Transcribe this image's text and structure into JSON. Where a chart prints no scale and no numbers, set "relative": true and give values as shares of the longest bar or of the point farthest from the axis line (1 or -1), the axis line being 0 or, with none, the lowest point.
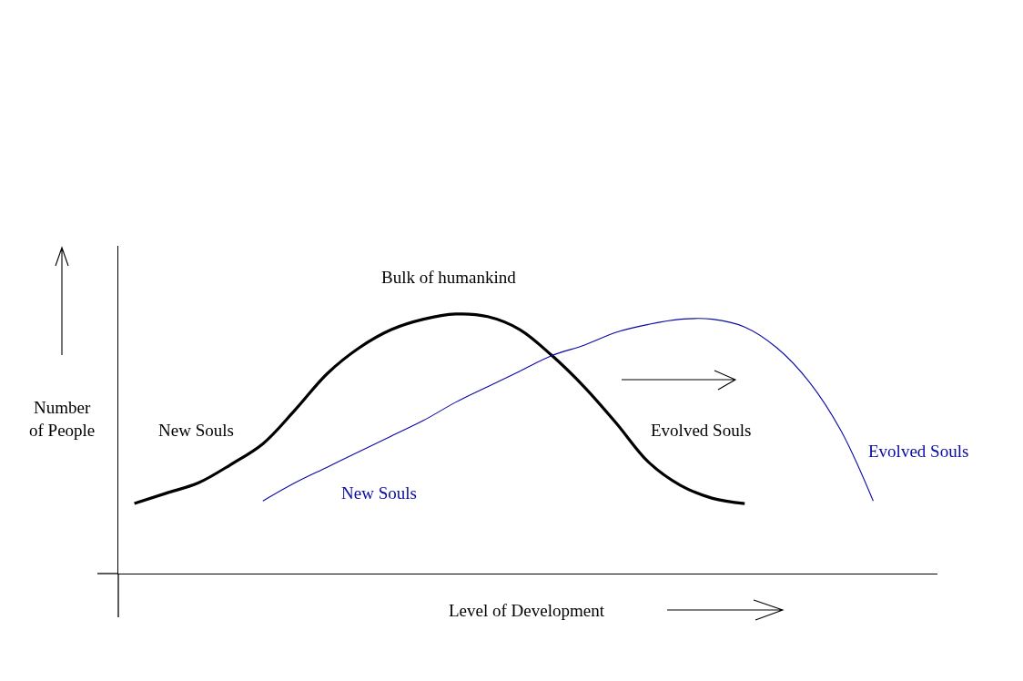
{
  "chart_data": {
    "type": "line",
    "relative": true,
    "xlabel": "Level of Development",
    "ylabel": "Number of People",
    "categories": [
      null,
      null,
      null,
      null,
      null,
      null,
      null,
      null,
      null,
      null,
      null,
      null,
      null,
      null,
      null,
      null,
      null,
      null,
      null,
      null,
      null,
      null,
      null,
      null
    ],
    "series": [
      {
        "color": "#000000",
        "values": [
          0.27,
          0.31,
          0.35,
          0.42,
          0.5,
          0.63,
          0.77,
          0.87,
          0.94,
          0.98,
          1.0,
          0.99,
          0.94,
          0.84,
          0.72,
          0.58,
          0.43,
          0.34,
          0.29,
          0.27,
          null,
          null,
          null,
          null
        ]
      },
      {
        "color": "#0a0aa5",
        "values": [
          null,
          null,
          null,
          null,
          0.28,
          0.35,
          0.41,
          0.47,
          0.53,
          0.59,
          0.66,
          0.72,
          0.78,
          0.84,
          0.88,
          0.93,
          0.96,
          0.98,
          0.98,
          0.95,
          0.87,
          0.74,
          0.55,
          0.28
        ]
      }
    ],
    "annotations": [
      "Bulk of humankind",
      "New Souls",
      "Evolved Souls",
      "New Souls",
      "Evolved Souls"
    ]
  }
}
